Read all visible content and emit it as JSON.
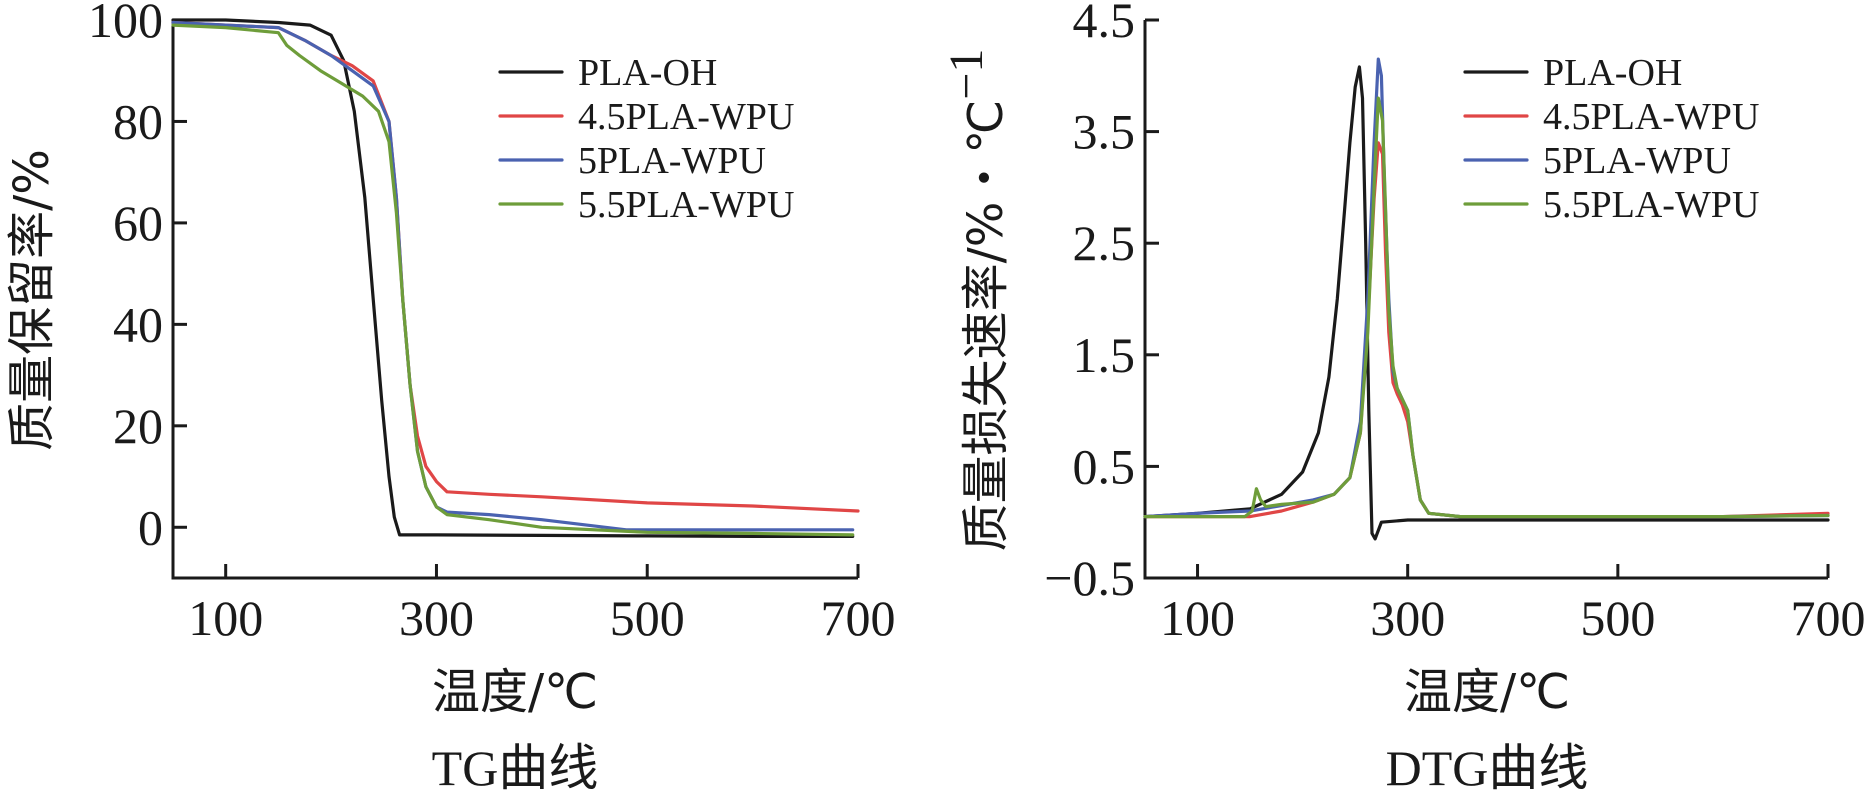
{
  "colors": {
    "PLA-OH": "#1a1a1a",
    "4.5PLA-WPU": "#e04646",
    "5PLA-WPU": "#4a62b0",
    "5.5PLA-WPU": "#6e9d3a"
  },
  "chart_data": [
    {
      "id": "tg",
      "type": "line",
      "caption": "TG曲线",
      "xlabel": "温度/℃",
      "ylabel": "质量保留率/%",
      "xlim": [
        50,
        700
      ],
      "ylim": [
        -10,
        100
      ],
      "xticks": [
        "100",
        "300",
        "500",
        "700"
      ],
      "xtick_values": [
        100,
        300,
        500,
        700
      ],
      "yticks": [
        "100",
        "80",
        "60",
        "40",
        "20",
        "0"
      ],
      "ytick_values": [
        100,
        80,
        60,
        40,
        20,
        0
      ],
      "legend": {
        "position": "top-right",
        "labels": [
          "PLA-OH",
          "4.5PLA-WPU",
          "5PLA-WPU",
          "5.5PLA-WPU"
        ]
      },
      "grid": false,
      "series": [
        {
          "name": "PLA-OH",
          "x": [
            50,
            100,
            150,
            180,
            200,
            212,
            222,
            232,
            240,
            248,
            255,
            260,
            265,
            300,
            400,
            500,
            600,
            695
          ],
          "y": [
            100,
            100,
            99.5,
            99,
            97,
            92,
            82,
            65,
            45,
            25,
            10,
            2,
            -1.5,
            -1.5,
            -1.6,
            -1.7,
            -1.8,
            -1.8
          ]
        },
        {
          "name": "4.5PLA-WPU",
          "x": [
            50,
            100,
            150,
            175,
            200,
            220,
            240,
            255,
            262,
            268,
            275,
            282,
            290,
            300,
            310,
            350,
            400,
            500,
            600,
            700
          ],
          "y": [
            99.5,
            99,
            98.5,
            96,
            93,
            91,
            88,
            80,
            65,
            45,
            28,
            18,
            12,
            9,
            7,
            6.5,
            6,
            4.8,
            4.2,
            3.2
          ]
        },
        {
          "name": "5PLA-WPU",
          "x": [
            50,
            100,
            150,
            175,
            200,
            220,
            240,
            255,
            262,
            268,
            275,
            282,
            290,
            300,
            310,
            350,
            400,
            480,
            550,
            600,
            695
          ],
          "y": [
            99.5,
            99,
            98.5,
            96,
            93,
            90,
            87,
            80,
            65,
            45,
            28,
            15,
            8,
            4,
            3,
            2.5,
            1.5,
            -0.5,
            -0.5,
            -0.5,
            -0.5
          ]
        },
        {
          "name": "5.5PLA-WPU",
          "x": [
            50,
            100,
            150,
            158,
            170,
            190,
            210,
            230,
            245,
            255,
            262,
            268,
            275,
            282,
            290,
            300,
            310,
            350,
            400,
            500,
            600,
            695
          ],
          "y": [
            99,
            98.5,
            97.5,
            95,
            93,
            90,
            87.5,
            85,
            82,
            76,
            62,
            45,
            28,
            15,
            8,
            4,
            2.5,
            1.5,
            0,
            -1,
            -1.2,
            -1.5
          ]
        }
      ]
    },
    {
      "id": "dtg",
      "type": "line",
      "caption": "DTG曲线",
      "xlabel": "温度/℃",
      "ylabel": "质量损失速率/%・℃",
      "ylabel_sup": "−1",
      "xlim": [
        50,
        700
      ],
      "ylim": [
        -0.5,
        4.5
      ],
      "xticks": [
        "100",
        "300",
        "500",
        "700"
      ],
      "xtick_values": [
        100,
        300,
        500,
        700
      ],
      "yticks": [
        "4.5",
        "3.5",
        "2.5",
        "1.5",
        "0.5",
        "−0.5"
      ],
      "ytick_values": [
        4.5,
        3.5,
        2.5,
        1.5,
        0.5,
        -0.5
      ],
      "legend": {
        "position": "top-right",
        "labels": [
          "PLA-OH",
          "4.5PLA-WPU",
          "5PLA-WPU",
          "5.5PLA-WPU"
        ]
      },
      "grid": false,
      "series": [
        {
          "name": "PLA-OH",
          "x": [
            50,
            100,
            150,
            180,
            200,
            215,
            225,
            233,
            240,
            245,
            250,
            254,
            257,
            260,
            263,
            266,
            269,
            275,
            300,
            400,
            500,
            600,
            700
          ],
          "y": [
            0.05,
            0.08,
            0.12,
            0.25,
            0.45,
            0.8,
            1.3,
            2.0,
            2.8,
            3.4,
            3.9,
            4.08,
            3.8,
            2.5,
            1.0,
            -0.1,
            -0.15,
            0.0,
            0.02,
            0.02,
            0.02,
            0.02,
            0.02
          ]
        },
        {
          "name": "4.5PLA-WPU",
          "x": [
            50,
            100,
            150,
            180,
            210,
            230,
            245,
            255,
            262,
            268,
            272,
            276,
            279,
            282,
            286,
            290,
            295,
            300,
            305,
            312,
            320,
            350,
            400,
            500,
            600,
            700
          ],
          "y": [
            0.05,
            0.05,
            0.05,
            0.1,
            0.18,
            0.25,
            0.4,
            0.8,
            1.8,
            2.9,
            3.4,
            3.3,
            2.4,
            1.7,
            1.25,
            1.15,
            1.05,
            0.9,
            0.6,
            0.2,
            0.08,
            0.05,
            0.05,
            0.05,
            0.05,
            0.08
          ]
        },
        {
          "name": "5PLA-WPU",
          "x": [
            50,
            100,
            150,
            180,
            210,
            230,
            245,
            255,
            262,
            268,
            272,
            275,
            278,
            282,
            286,
            290,
            295,
            300,
            305,
            312,
            320,
            350,
            400,
            500,
            600,
            700
          ],
          "y": [
            0.05,
            0.08,
            0.1,
            0.15,
            0.2,
            0.25,
            0.4,
            0.9,
            2.0,
            3.4,
            4.15,
            4.0,
            3.0,
            2.0,
            1.35,
            1.2,
            1.1,
            1.0,
            0.6,
            0.2,
            0.08,
            0.05,
            0.05,
            0.05,
            0.05,
            0.06
          ]
        },
        {
          "name": "5.5PLA-WPU",
          "x": [
            50,
            100,
            145,
            152,
            156,
            160,
            165,
            180,
            210,
            230,
            245,
            255,
            262,
            268,
            272,
            276,
            279,
            282,
            286,
            290,
            295,
            300,
            305,
            312,
            320,
            350,
            400,
            500,
            600,
            700
          ],
          "y": [
            0.05,
            0.05,
            0.05,
            0.1,
            0.3,
            0.2,
            0.14,
            0.16,
            0.18,
            0.25,
            0.4,
            0.8,
            1.7,
            3.0,
            3.8,
            3.6,
            2.8,
            1.9,
            1.4,
            1.2,
            1.1,
            1.0,
            0.6,
            0.2,
            0.08,
            0.05,
            0.05,
            0.05,
            0.05,
            0.06
          ]
        }
      ]
    }
  ]
}
